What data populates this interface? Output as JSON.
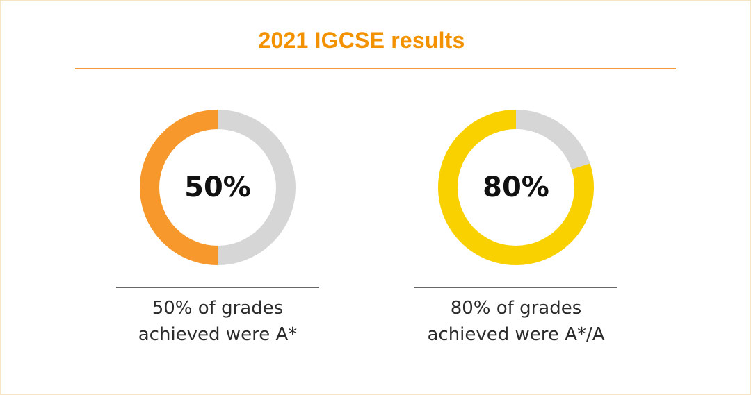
{
  "header": {
    "title": "2021 IGCSE results"
  },
  "colors": {
    "title": "#f39200",
    "track": "#d6d6d6",
    "orange": "#f6982c",
    "yellow": "#f9d100"
  },
  "chart_data": [
    {
      "type": "donut",
      "value": 50,
      "total": 100,
      "center_label": "50%",
      "color": "#f6982c",
      "track_color": "#d6d6d6",
      "caption_lines": [
        "50% of grades",
        "achieved were A*"
      ]
    },
    {
      "type": "donut",
      "value": 80,
      "total": 100,
      "center_label": "80%",
      "color": "#f9d100",
      "track_color": "#d6d6d6",
      "caption_lines": [
        "80% of grades",
        "achieved were A*/A"
      ]
    }
  ]
}
